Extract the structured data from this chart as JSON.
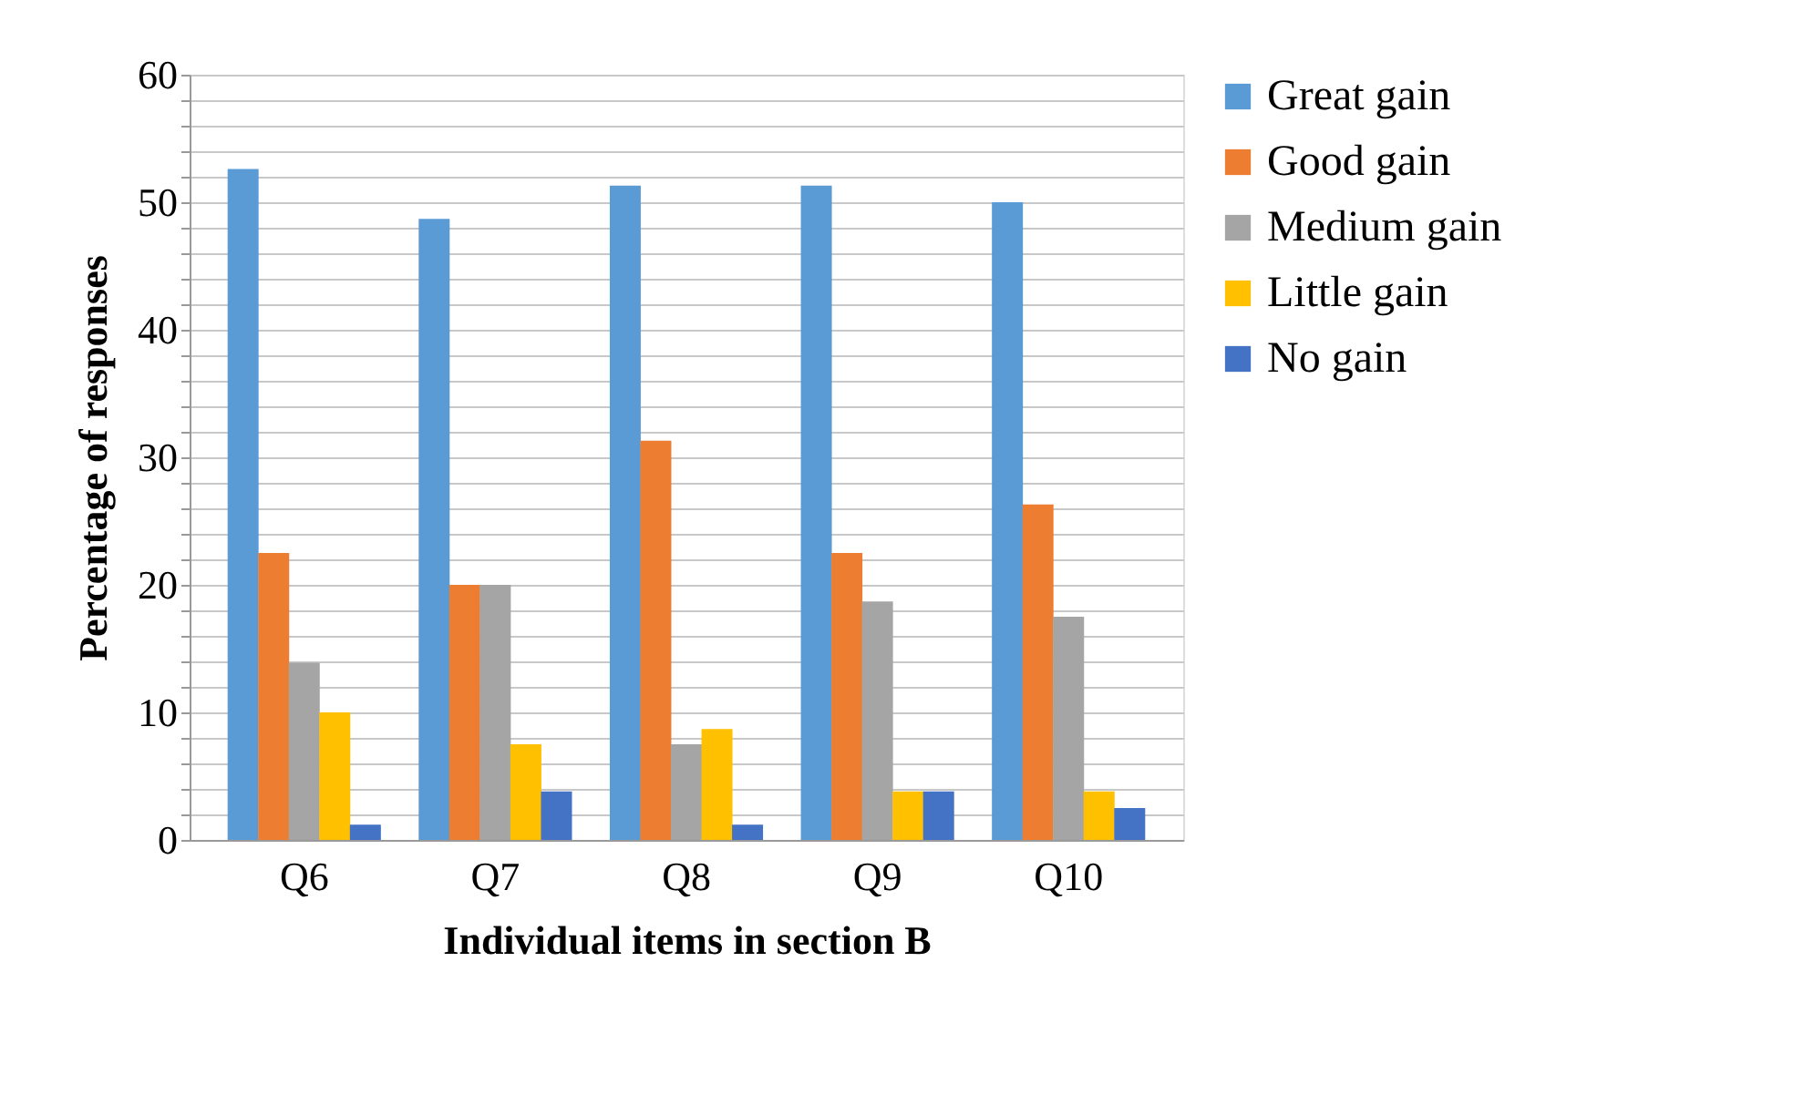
{
  "chart_data": {
    "type": "bar",
    "xlabel": "Individual items in section B",
    "ylabel": "Percentage of responses",
    "categories": [
      "Q6",
      "Q7",
      "Q8",
      "Q9",
      "Q10"
    ],
    "series": [
      {
        "name": "Great gain",
        "color": "#5b9bd5",
        "values": [
          52.6,
          48.7,
          51.3,
          51.3,
          50.0
        ]
      },
      {
        "name": "Good gain",
        "color": "#ed7d31",
        "values": [
          22.5,
          20.0,
          31.3,
          22.5,
          26.3
        ]
      },
      {
        "name": "Medium gain",
        "color": "#a5a5a5",
        "values": [
          13.9,
          20.0,
          7.5,
          18.7,
          17.5
        ]
      },
      {
        "name": "Little gain",
        "color": "#ffc000",
        "values": [
          10.0,
          7.5,
          8.7,
          3.8,
          3.8
        ]
      },
      {
        "name": "No gain",
        "color": "#4472c4",
        "values": [
          1.2,
          3.8,
          1.2,
          3.8,
          2.5
        ]
      }
    ],
    "ylim": [
      0,
      60
    ],
    "yticks": [
      0,
      {
        "value": 2,
        "label": null
      },
      {
        "value": 4,
        "label": null
      },
      {
        "value": 6,
        "label": null
      },
      {
        "value": 8,
        "label": null
      },
      10,
      {
        "value": 12,
        "label": null
      },
      {
        "value": 14,
        "label": null
      },
      {
        "value": 16,
        "label": null
      },
      {
        "value": 18,
        "label": null
      },
      20,
      {
        "value": 22,
        "label": null
      },
      {
        "value": 24,
        "label": null
      },
      {
        "value": 26,
        "label": null
      },
      {
        "value": 28,
        "label": null
      },
      30,
      {
        "value": 32,
        "label": null
      },
      {
        "value": 34,
        "label": null
      },
      {
        "value": 36,
        "label": null
      },
      {
        "value": 38,
        "label": null
      },
      40,
      {
        "value": 42,
        "label": null
      },
      {
        "value": 44,
        "label": null
      },
      {
        "value": 46,
        "label": null
      },
      {
        "value": 48,
        "label": null
      },
      50,
      {
        "value": 52,
        "label": null
      },
      {
        "value": 54,
        "label": null
      },
      {
        "value": 56,
        "label": null
      },
      {
        "value": 58,
        "label": null
      },
      60
    ],
    "grid": true,
    "legend": "right"
  }
}
